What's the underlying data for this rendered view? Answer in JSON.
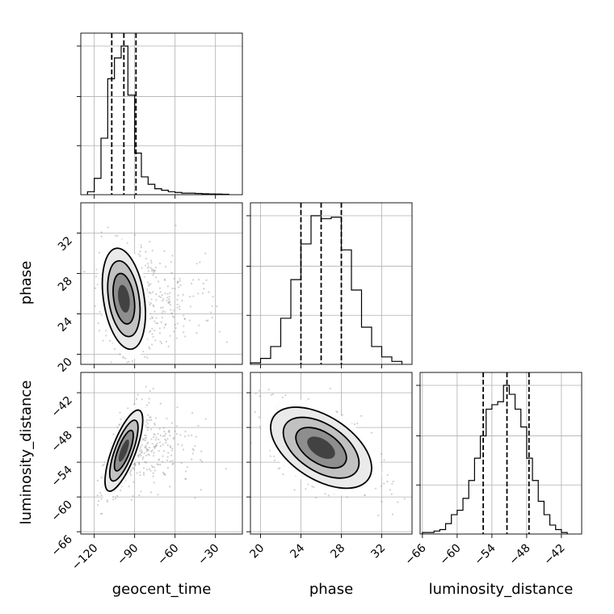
{
  "chart_data": {
    "type": "corner",
    "parameters": [
      "geocent_time",
      "phase",
      "luminosity_distance"
    ],
    "axis_labels": {
      "geocent_time": "geocent_time",
      "phase": "phase",
      "luminosity_distance": "luminosity_distance"
    },
    "ranges": {
      "geocent_time": [
        -130,
        -10
      ],
      "phase": [
        19,
        35
      ],
      "luminosity_distance": [
        -66.4,
        -38.5
      ]
    },
    "ticks": {
      "geocent_time": [
        -120,
        -90,
        -60,
        -30
      ],
      "phase": [
        20,
        24,
        28,
        32
      ],
      "luminosity_distance": [
        -66,
        -60,
        -54,
        -48,
        -42
      ]
    },
    "tick_labels": {
      "geocent_time": [
        "−120",
        "−90",
        "−60",
        "−30"
      ],
      "phase": [
        "20",
        "24",
        "28",
        "32"
      ],
      "luminosity_distance": [
        "−66",
        "−60",
        "−54",
        "−48",
        "−42"
      ]
    },
    "quantiles": {
      "geocent_time": [
        -107,
        -98,
        -89
      ],
      "phase": [
        24.0,
        26.0,
        28.0
      ],
      "luminosity_distance": [
        -55.5,
        -51.4,
        -47.6
      ]
    },
    "histograms": {
      "geocent_time": {
        "bin_edges": [
          -125,
          -120,
          -115,
          -110,
          -105,
          -100,
          -95,
          -90,
          -85,
          -80,
          -75,
          -70,
          -65,
          -60,
          -55,
          -50,
          -45,
          -40,
          -35,
          -30,
          -25,
          -20
        ],
        "counts": [
          0.02,
          0.11,
          0.38,
          0.78,
          0.92,
          1.0,
          0.67,
          0.28,
          0.12,
          0.07,
          0.04,
          0.03,
          0.02,
          0.015,
          0.01,
          0.01,
          0.008,
          0.006,
          0.005,
          0.004,
          0.003
        ]
      },
      "phase": {
        "bin_edges": [
          19,
          20,
          21,
          22,
          23,
          24,
          25,
          26,
          27,
          28,
          29,
          30,
          31,
          32,
          33,
          34
        ],
        "counts": [
          0.01,
          0.04,
          0.12,
          0.31,
          0.57,
          0.81,
          1.0,
          0.98,
          0.99,
          0.77,
          0.5,
          0.25,
          0.12,
          0.05,
          0.02
        ]
      },
      "luminosity_distance": {
        "bin_edges": [
          -66,
          -65,
          -64,
          -63,
          -62,
          -61,
          -60,
          -59,
          -58,
          -57,
          -56,
          -55,
          -54,
          -53,
          -52,
          -51,
          -50,
          -49,
          -48,
          -47,
          -46,
          -45,
          -44,
          -43,
          -42,
          -41
        ],
        "counts": [
          0.01,
          0.01,
          0.02,
          0.03,
          0.07,
          0.13,
          0.16,
          0.24,
          0.36,
          0.51,
          0.66,
          0.84,
          0.87,
          0.89,
          1.0,
          0.94,
          0.84,
          0.72,
          0.51,
          0.36,
          0.22,
          0.13,
          0.06,
          0.03,
          0.01
        ]
      }
    },
    "pairs": [
      {
        "x": "geocent_time",
        "y": "phase",
        "center": [
          -98,
          25.5
        ],
        "std": [
          8,
          2.5
        ],
        "correlation": -0.3
      },
      {
        "x": "geocent_time",
        "y": "luminosity_distance",
        "center": [
          -98,
          -52
        ],
        "std": [
          7,
          3.5
        ],
        "correlation": 0.75
      },
      {
        "x": "phase",
        "y": "luminosity_distance",
        "center": [
          26,
          -51.5
        ],
        "std": [
          2.5,
          3.5
        ],
        "correlation": -0.5
      }
    ],
    "grid": true,
    "quantile_line_style": "dashed"
  }
}
